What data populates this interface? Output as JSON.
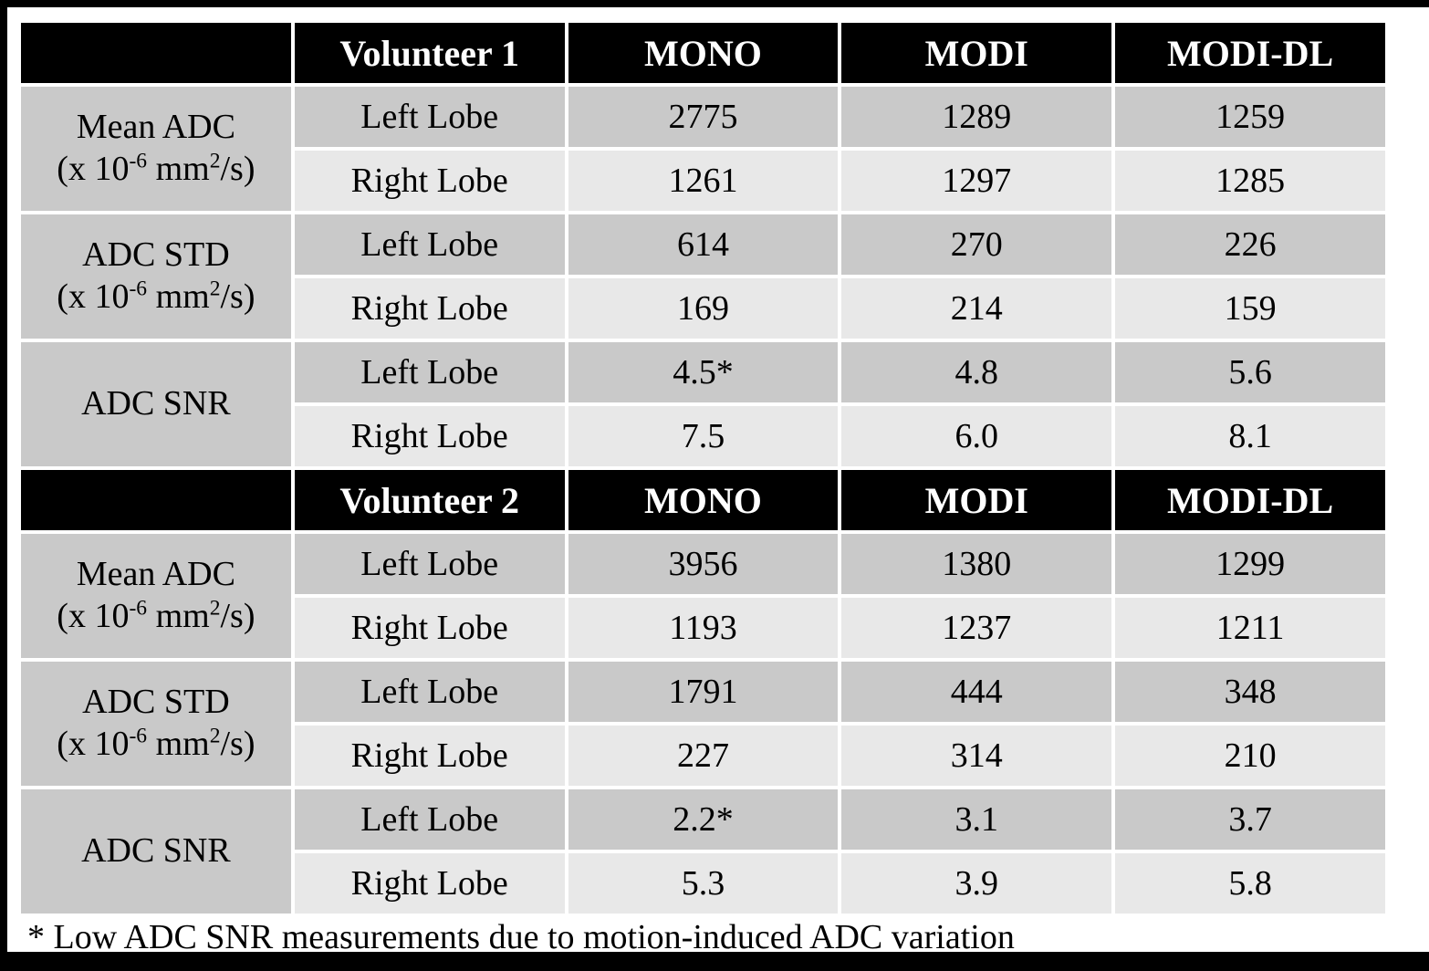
{
  "colors": {
    "header_bg": "#000000",
    "header_text": "#ffffff",
    "row_dark": "#c9c9c9",
    "row_light": "#e8e8e8",
    "frame": "#000000",
    "background": "#ffffff",
    "text": "#000000"
  },
  "metric_labels": {
    "mean_adc": {
      "line1": "Mean ADC"
    },
    "adc_std": {
      "line1": "ADC STD"
    },
    "adc_snr": {
      "line1": "ADC SNR"
    },
    "unit": {
      "a": "(x 10",
      "sup1": "-6",
      "b": " mm",
      "sup2": "2",
      "c": "/s)"
    }
  },
  "footnote": "* Low ADC SNR measurements due to motion-induced ADC variation",
  "chart_data": {
    "type": "table",
    "column_headers": [
      "",
      "Volunteer",
      "MONO",
      "MODI",
      "MODI-DL"
    ],
    "row_metrics": [
      "Mean ADC (x 10^-6 mm^2/s)",
      "ADC STD (x 10^-6 mm^2/s)",
      "ADC SNR"
    ],
    "footnote": "* Low ADC SNR measurements due to motion-induced ADC variation",
    "sections": [
      {
        "title": "Volunteer 1",
        "columns": [
          "MONO",
          "MODI",
          "MODI-DL"
        ],
        "rows": [
          {
            "metric": "Mean ADC (x 10^-6 mm^2/s)",
            "lobe": "Left Lobe",
            "values": [
              "2775",
              "1289",
              "1259"
            ]
          },
          {
            "metric": "Mean ADC (x 10^-6 mm^2/s)",
            "lobe": "Right Lobe",
            "values": [
              "1261",
              "1297",
              "1285"
            ]
          },
          {
            "metric": "ADC STD (x 10^-6 mm^2/s)",
            "lobe": "Left Lobe",
            "values": [
              "614",
              "270",
              "226"
            ]
          },
          {
            "metric": "ADC STD (x 10^-6 mm^2/s)",
            "lobe": "Right Lobe",
            "values": [
              "169",
              "214",
              "159"
            ]
          },
          {
            "metric": "ADC SNR",
            "lobe": "Left Lobe",
            "values": [
              "4.5*",
              "4.8",
              "5.6"
            ]
          },
          {
            "metric": "ADC SNR",
            "lobe": "Right Lobe",
            "values": [
              "7.5",
              "6.0",
              "8.1"
            ]
          }
        ]
      },
      {
        "title": "Volunteer 2",
        "columns": [
          "MONO",
          "MODI",
          "MODI-DL"
        ],
        "rows": [
          {
            "metric": "Mean ADC (x 10^-6 mm^2/s)",
            "lobe": "Left Lobe",
            "values": [
              "3956",
              "1380",
              "1299"
            ]
          },
          {
            "metric": "Mean ADC (x 10^-6 mm^2/s)",
            "lobe": "Right Lobe",
            "values": [
              "1193",
              "1237",
              "1211"
            ]
          },
          {
            "metric": "ADC STD (x 10^-6 mm^2/s)",
            "lobe": "Left Lobe",
            "values": [
              "1791",
              "444",
              "348"
            ]
          },
          {
            "metric": "ADC STD (x 10^-6 mm^2/s)",
            "lobe": "Right Lobe",
            "values": [
              "227",
              "314",
              "210"
            ]
          },
          {
            "metric": "ADC SNR",
            "lobe": "Left Lobe",
            "values": [
              "2.2*",
              "3.1",
              "3.7"
            ]
          },
          {
            "metric": "ADC SNR",
            "lobe": "Right Lobe",
            "values": [
              "5.3",
              "3.9",
              "5.8"
            ]
          }
        ]
      }
    ]
  }
}
